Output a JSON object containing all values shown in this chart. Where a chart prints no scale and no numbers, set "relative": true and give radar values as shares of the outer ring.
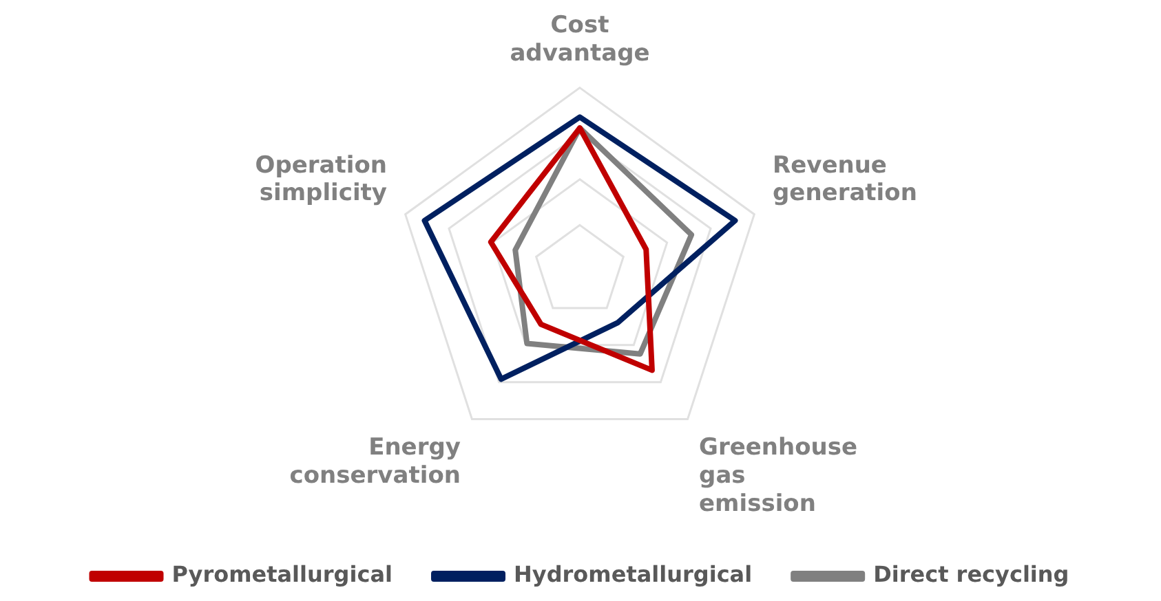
{
  "chart_data": {
    "type": "radar",
    "relative": true,
    "categories": [
      "Cost advantage",
      "Revenue generation",
      "Greenhouse gas emission",
      "Energy conservation",
      "Operation simplicity"
    ],
    "series": [
      {
        "name": "Pyrometallurgical",
        "color": "#c00000",
        "values": [
          0.78,
          0.38,
          0.67,
          0.36,
          0.51
        ]
      },
      {
        "name": "Hydrometallurgical",
        "color": "#002060",
        "values": [
          0.84,
          0.89,
          0.35,
          0.73,
          0.89
        ]
      },
      {
        "name": "Direct recycling",
        "color": "#808080",
        "values": [
          0.78,
          0.64,
          0.56,
          0.49,
          0.37
        ]
      }
    ],
    "grid": true,
    "legend": "bottom",
    "marker": "none"
  }
}
